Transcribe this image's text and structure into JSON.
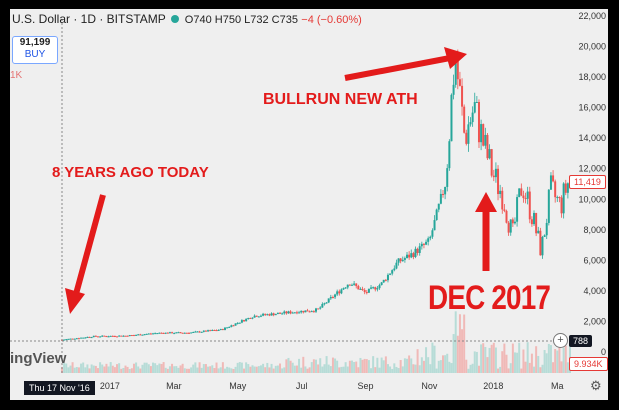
{
  "header": {
    "symbol": "U.S. Dollar · 1D · BITSTAMP",
    "ohlc": "O740 H750 L732 C735",
    "change": "−4 (−0.60%)"
  },
  "buy_box": {
    "value": "91,199",
    "label": "BUY"
  },
  "volume_mini": "1K",
  "logo": "ingView",
  "crosshair_date": "Thu 17 Nov '16",
  "price_badges": {
    "last": "11,419",
    "crosshair": "788",
    "volume": "9.934K"
  },
  "annotations": {
    "ath": "BULLRUN NEW ATH",
    "eight_years": "8 YEARS AGO TODAY",
    "dec": "DEC 2017"
  },
  "colors": {
    "annotation": "#e31b1b",
    "up": "#26a69a",
    "down": "#ef5350"
  },
  "icons": [
    "plus-icon",
    "gear-icon"
  ],
  "chart_data": {
    "type": "line",
    "title": "",
    "xlabel": "",
    "ylabel": "",
    "x_tick_labels": [
      "2017",
      "Mar",
      "May",
      "Jul",
      "Sep",
      "Nov",
      "2018",
      "Ma"
    ],
    "y_tick_labels": [
      "22,000",
      "20,000",
      "18,000",
      "16,000",
      "14,000",
      "12,000",
      "10,000",
      "8,000",
      "6,000",
      "4,000",
      "2,000",
      "0"
    ],
    "ylim": [
      0,
      22000
    ],
    "x_months_since_nov_2016": [
      0,
      1,
      2,
      3,
      4,
      5,
      6,
      7,
      8,
      9,
      9.5,
      10,
      10.5,
      11,
      11.5,
      12,
      12.3,
      12.6,
      12.9,
      13.2,
      13.5,
      13.8,
      14.1,
      14.4,
      14.7,
      15.0,
      15.3,
      15.6,
      15.9
    ],
    "series": [
      {
        "values": [
          740,
          960,
          1000,
          1180,
          1200,
          1400,
          2300,
          2500,
          2700,
          4500,
          3800,
          4400,
          5800,
          6400,
          7200,
          11000,
          19500,
          14000,
          16000,
          13500,
          11500,
          10200,
          7500,
          11000,
          9000,
          6500,
          10500,
          9500,
          11400
        ]
      }
    ],
    "grid": false,
    "legend": "none"
  }
}
